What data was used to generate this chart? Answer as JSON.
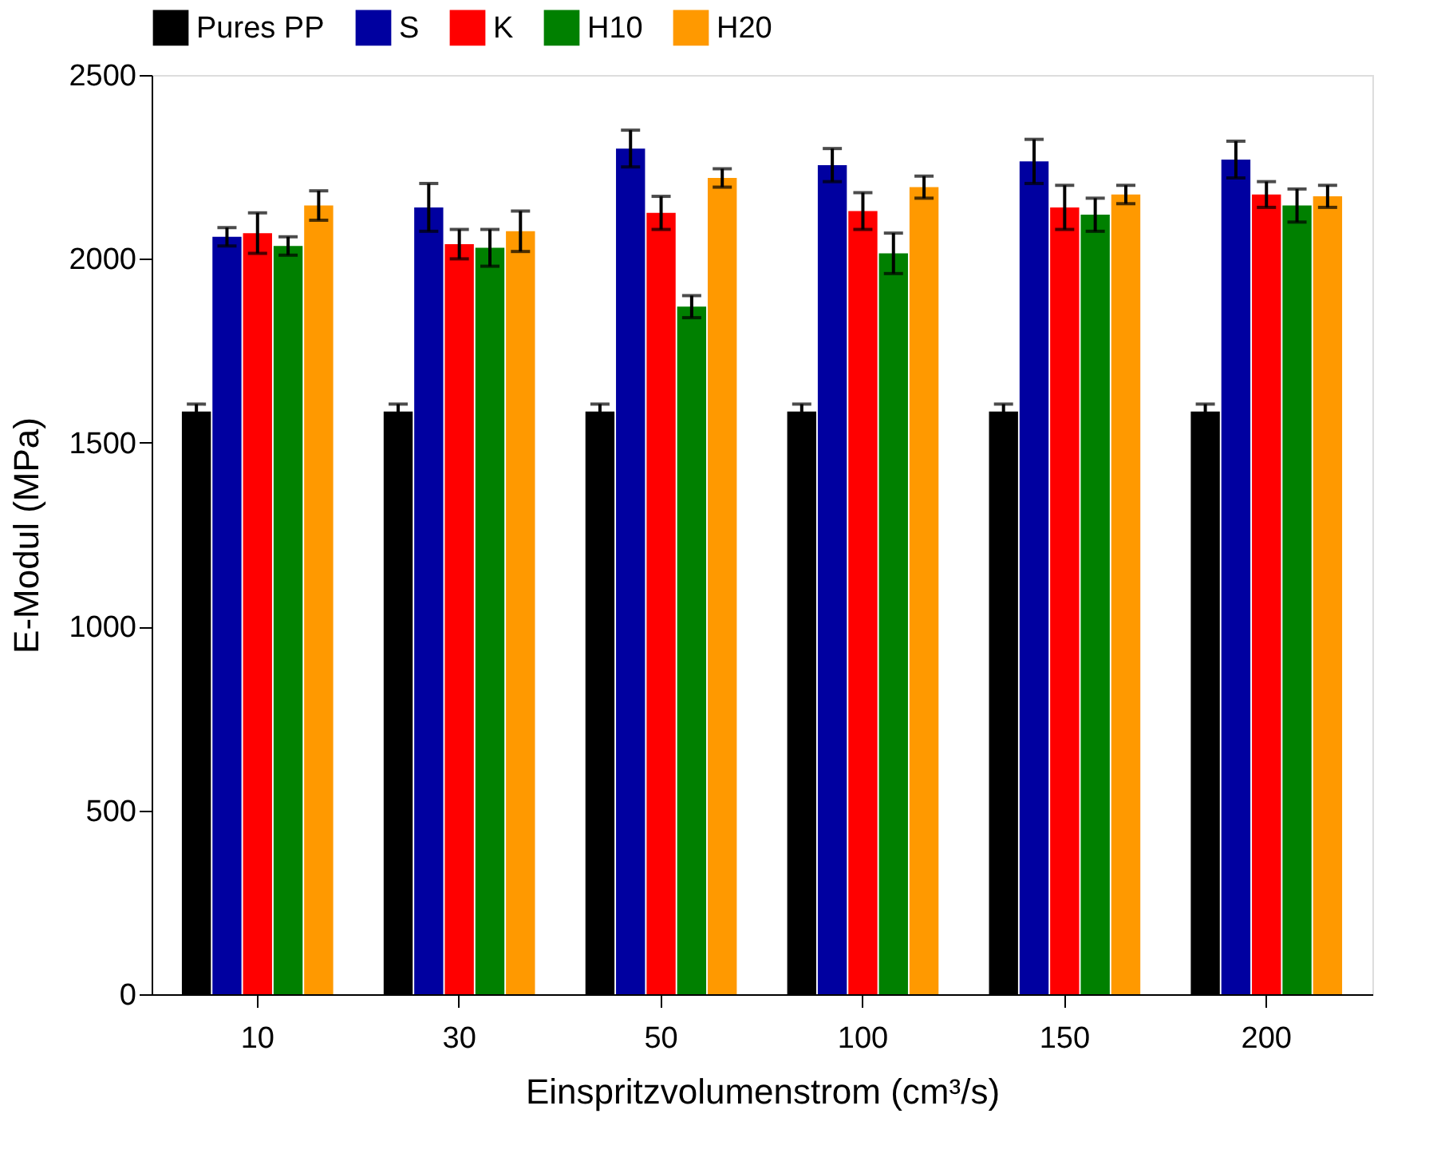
{
  "chart_data": {
    "type": "bar",
    "xlabel": "Einspritzvolumenstrom (cm³/s)",
    "ylabel": "E-Modul (MPa)",
    "categories": [
      "10",
      "30",
      "50",
      "100",
      "150",
      "200"
    ],
    "series": [
      {
        "name": "Pures PP",
        "color": "#000000",
        "values": [
          1585,
          1585,
          1585,
          1585,
          1585,
          1585
        ],
        "errors": [
          20,
          20,
          20,
          20,
          20,
          20
        ]
      },
      {
        "name": "S",
        "color": "#0000a0",
        "values": [
          2060,
          2140,
          2300,
          2255,
          2265,
          2270
        ],
        "errors": [
          25,
          65,
          50,
          45,
          60,
          50
        ]
      },
      {
        "name": "K",
        "color": "#ff0000",
        "values": [
          2070,
          2040,
          2125,
          2130,
          2140,
          2175
        ],
        "errors": [
          55,
          40,
          45,
          50,
          60,
          35
        ]
      },
      {
        "name": "H10",
        "color": "#008000",
        "values": [
          2035,
          2030,
          1870,
          2015,
          2120,
          2145
        ],
        "errors": [
          25,
          50,
          30,
          55,
          45,
          45
        ]
      },
      {
        "name": "H20",
        "color": "#ff9900",
        "values": [
          2145,
          2075,
          2220,
          2195,
          2175,
          2170
        ],
        "errors": [
          40,
          55,
          25,
          30,
          25,
          30
        ]
      }
    ],
    "ylim": [
      0,
      2500
    ],
    "yticks": [
      0,
      500,
      1000,
      1500,
      2000,
      2500
    ],
    "grid": false,
    "legend": "top"
  }
}
